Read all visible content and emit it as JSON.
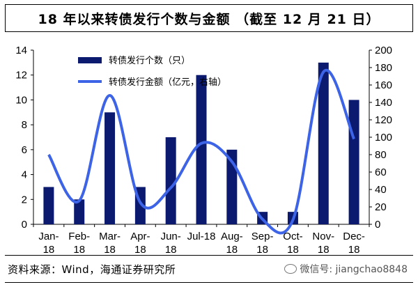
{
  "colors": {
    "bar": "#0b1a6e",
    "line": "#3d63e6"
  },
  "title": "18 年以来转债发行个数与金额 （截至 12 月 21 日）",
  "source": "资料来源：Wind，海通证券研究所",
  "watermark": "微信号: jiangchao8848",
  "chart_data": {
    "type": "bar",
    "categories": [
      "Jan-18",
      "Feb-18",
      "Mar-18",
      "Apr-18",
      "Jun-18",
      "Jul-18",
      "Aug-18",
      "Sep-18",
      "Oct-18",
      "Nov-18",
      "Dec-18"
    ],
    "category_labels": [
      [
        "Jan-",
        "18"
      ],
      [
        "Feb-",
        "18"
      ],
      [
        "Mar-",
        "18"
      ],
      [
        "Apr-",
        "18"
      ],
      [
        "Jun-",
        "18"
      ],
      [
        "Jul-18",
        ""
      ],
      [
        "Aug-",
        "18"
      ],
      [
        "Sep-",
        "18"
      ],
      [
        "Oct-",
        "18"
      ],
      [
        "Nov-",
        "18"
      ],
      [
        "Dec-",
        "18"
      ]
    ],
    "series": [
      {
        "name": "转债发行个数（只）",
        "type": "bar",
        "axis": "left",
        "values": [
          3,
          2,
          9,
          3,
          7,
          12,
          6,
          1,
          1,
          13,
          10
        ]
      },
      {
        "name": "转债发行金额（亿元，右轴）",
        "type": "line",
        "axis": "right",
        "smooth": true,
        "values": [
          80,
          27,
          148,
          25,
          42,
          93,
          72,
          6,
          5,
          175,
          98
        ]
      }
    ],
    "y_left": {
      "min": 0,
      "max": 14,
      "ticks": [
        0,
        2,
        4,
        6,
        8,
        10,
        12,
        14
      ]
    },
    "y_right": {
      "min": 0,
      "max": 200,
      "ticks": [
        0,
        20,
        40,
        60,
        80,
        100,
        120,
        140,
        160,
        180,
        200
      ]
    },
    "legend_position": "top-left",
    "grid": false
  }
}
